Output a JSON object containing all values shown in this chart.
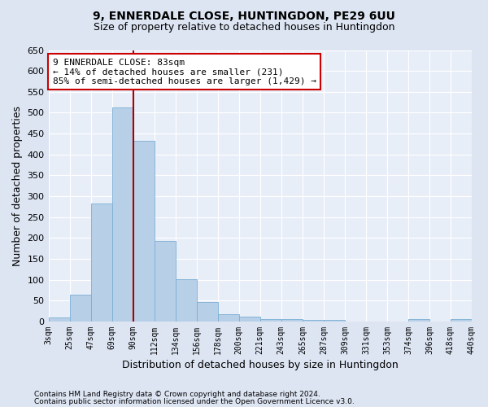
{
  "title": "9, ENNERDALE CLOSE, HUNTINGDON, PE29 6UU",
  "subtitle": "Size of property relative to detached houses in Huntingdon",
  "xlabel": "Distribution of detached houses by size in Huntingdon",
  "ylabel": "Number of detached properties",
  "categories": [
    "3sqm",
    "25sqm",
    "47sqm",
    "69sqm",
    "90sqm",
    "112sqm",
    "134sqm",
    "156sqm",
    "178sqm",
    "200sqm",
    "221sqm",
    "243sqm",
    "265sqm",
    "287sqm",
    "309sqm",
    "331sqm",
    "353sqm",
    "374sqm",
    "396sqm",
    "418sqm",
    "440sqm"
  ],
  "values": [
    10,
    65,
    283,
    512,
    432,
    192,
    102,
    46,
    18,
    12,
    6,
    5,
    4,
    4,
    0,
    0,
    0,
    5,
    0,
    6
  ],
  "bar_color": "#b8cfe8",
  "bar_edge_color": "#7aafd4",
  "vline_x": 4,
  "vline_color": "#aa0000",
  "annotation_line1": "9 ENNERDALE CLOSE: 83sqm",
  "annotation_line2": "← 14% of detached houses are smaller (231)",
  "annotation_line3": "85% of semi-detached houses are larger (1,429) →",
  "ylim": [
    0,
    650
  ],
  "yticks": [
    0,
    50,
    100,
    150,
    200,
    250,
    300,
    350,
    400,
    450,
    500,
    550,
    600,
    650
  ],
  "fig_bg_color": "#dde5f3",
  "plot_bg_color": "#e8eef8",
  "grid_color": "#ffffff",
  "footer1": "Contains HM Land Registry data © Crown copyright and database right 2024.",
  "footer2": "Contains public sector information licensed under the Open Government Licence v3.0.",
  "title_fontsize": 10,
  "subtitle_fontsize": 9
}
